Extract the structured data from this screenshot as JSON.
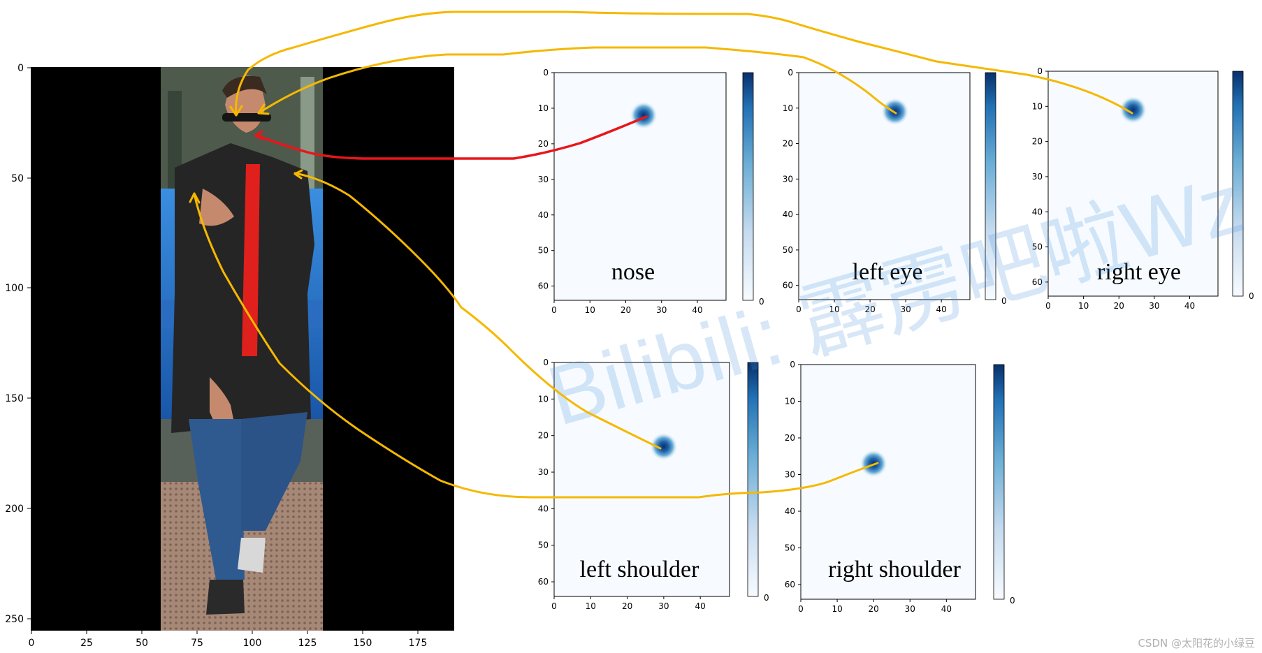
{
  "photo_axes": {
    "xticks": [
      "0",
      "25",
      "50",
      "75",
      "100",
      "125",
      "150",
      "175"
    ],
    "yticks": [
      "0",
      "50",
      "100",
      "150",
      "200",
      "250"
    ]
  },
  "heatmap_axes": {
    "xticks": [
      "0",
      "10",
      "20",
      "30",
      "40"
    ],
    "yticks": [
      "0",
      "10",
      "20",
      "30",
      "40",
      "50",
      "60"
    ],
    "colorbar_min": "0"
  },
  "panels": {
    "nose": "nose",
    "left_eye": "left eye",
    "right_eye": "right eye",
    "left_shoulder": "left shoulder",
    "right_shoulder": "right shoulder"
  },
  "watermark": "Bilibili: 霹雳吧啦Wz",
  "credit": "CSDN @太阳花的小绿豆",
  "colors": {
    "arrow_yellow": "#f5b800",
    "arrow_red": "#e8161b",
    "heat_dark": "#08306b",
    "heat_light": "#f7fbff"
  },
  "chart_data": [
    {
      "type": "heatmap",
      "label": "nose",
      "peak": {
        "x": 25,
        "y": 12
      },
      "xlim": [
        0,
        48
      ],
      "ylim": [
        64,
        0
      ]
    },
    {
      "type": "heatmap",
      "label": "left eye",
      "peak": {
        "x": 27,
        "y": 11
      },
      "xlim": [
        0,
        48
      ],
      "ylim": [
        64,
        0
      ]
    },
    {
      "type": "heatmap",
      "label": "right eye",
      "peak": {
        "x": 24,
        "y": 11
      },
      "xlim": [
        0,
        48
      ],
      "ylim": [
        64,
        0
      ]
    },
    {
      "type": "heatmap",
      "label": "left shoulder",
      "peak": {
        "x": 30,
        "y": 23
      },
      "xlim": [
        0,
        48
      ],
      "ylim": [
        64,
        0
      ]
    },
    {
      "type": "heatmap",
      "label": "right shoulder",
      "peak": {
        "x": 20,
        "y": 27
      },
      "xlim": [
        0,
        48
      ],
      "ylim": [
        64,
        0
      ]
    }
  ]
}
